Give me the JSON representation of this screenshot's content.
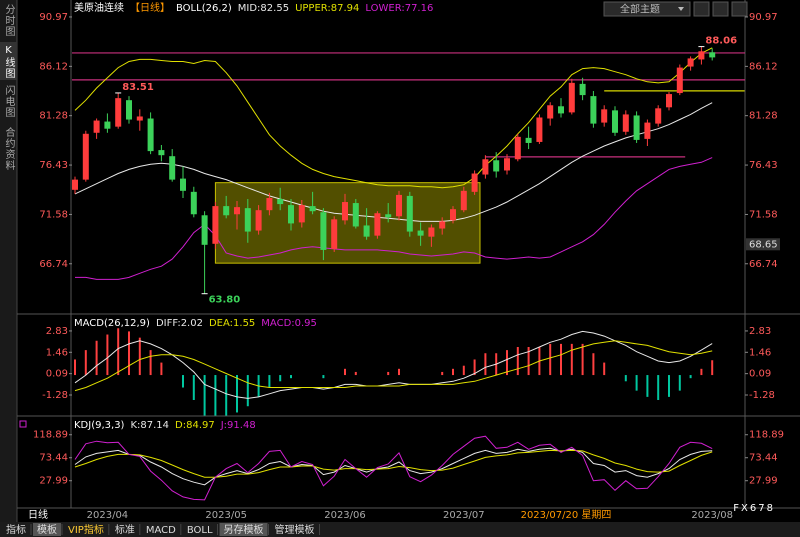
{
  "sidebar": [
    "分时图",
    "K线图",
    "闪电图",
    "合约资料"
  ],
  "toolbar": {
    "theme": "全部主题"
  },
  "chart_data": [
    {
      "type": "candlestick",
      "title": "美原油连续",
      "period": "【日线】",
      "indicator": "BOLL(26,2)",
      "up_color": "#ff3c3c",
      "down_color": "#3cd25a",
      "candles": [
        [
          74.0,
          75.3,
          73.6,
          75.0
        ],
        [
          75.0,
          79.8,
          74.8,
          79.5
        ],
        [
          79.6,
          81.0,
          79.0,
          80.8
        ],
        [
          80.7,
          81.5,
          79.6,
          80.0
        ],
        [
          80.2,
          83.51,
          80.0,
          83.0
        ],
        [
          82.8,
          83.2,
          80.5,
          80.9
        ],
        [
          80.8,
          81.9,
          79.8,
          81.2
        ],
        [
          81.0,
          81.6,
          77.5,
          77.8
        ],
        [
          77.9,
          78.4,
          76.8,
          77.4
        ],
        [
          77.3,
          78.0,
          74.8,
          75.0
        ],
        [
          75.1,
          76.3,
          73.2,
          73.9
        ],
        [
          73.8,
          74.3,
          71.3,
          71.6
        ],
        [
          71.5,
          71.9,
          63.8,
          68.6
        ],
        [
          68.7,
          72.8,
          68.2,
          72.4
        ],
        [
          72.4,
          73.4,
          71.2,
          71.5
        ],
        [
          71.6,
          72.9,
          70.1,
          72.3
        ],
        [
          72.2,
          73.1,
          68.8,
          69.9
        ],
        [
          70.0,
          72.5,
          69.6,
          72.0
        ],
        [
          72.0,
          73.7,
          71.5,
          73.2
        ],
        [
          73.1,
          74.2,
          72.0,
          72.6
        ],
        [
          72.5,
          73.1,
          70.0,
          70.7
        ],
        [
          70.8,
          73.0,
          70.3,
          72.5
        ],
        [
          72.4,
          73.8,
          71.6,
          71.9
        ],
        [
          71.8,
          72.2,
          67.1,
          68.1
        ],
        [
          68.2,
          71.4,
          67.9,
          71.1
        ],
        [
          71.0,
          73.6,
          70.6,
          72.8
        ],
        [
          72.7,
          73.1,
          70.2,
          70.4
        ],
        [
          70.5,
          72.2,
          69.1,
          69.4
        ],
        [
          69.5,
          71.9,
          69.2,
          71.7
        ],
        [
          71.6,
          72.7,
          70.8,
          71.3
        ],
        [
          71.4,
          73.9,
          71.0,
          73.5
        ],
        [
          73.4,
          73.8,
          69.4,
          69.9
        ],
        [
          70.0,
          70.8,
          68.5,
          69.5
        ],
        [
          69.4,
          70.6,
          68.4,
          70.3
        ],
        [
          70.2,
          71.3,
          69.6,
          70.9
        ],
        [
          71.0,
          72.4,
          70.7,
          72.1
        ],
        [
          72.0,
          74.3,
          71.8,
          73.9
        ],
        [
          73.8,
          75.9,
          73.5,
          75.6
        ],
        [
          75.5,
          77.4,
          75.1,
          77.0
        ],
        [
          76.9,
          77.7,
          75.2,
          75.8
        ],
        [
          75.9,
          77.5,
          75.5,
          77.1
        ],
        [
          77.0,
          79.5,
          76.8,
          79.2
        ],
        [
          79.1,
          80.2,
          78.0,
          78.6
        ],
        [
          78.7,
          81.4,
          78.5,
          81.1
        ],
        [
          81.0,
          82.6,
          80.3,
          82.3
        ],
        [
          82.2,
          83.0,
          81.1,
          81.5
        ],
        [
          81.6,
          84.9,
          81.4,
          84.5
        ],
        [
          84.4,
          85.0,
          82.8,
          83.3
        ],
        [
          83.2,
          83.7,
          80.1,
          80.5
        ],
        [
          80.6,
          82.3,
          80.2,
          81.9
        ],
        [
          81.8,
          82.2,
          79.3,
          79.6
        ],
        [
          79.7,
          81.8,
          79.4,
          81.4
        ],
        [
          81.3,
          81.7,
          78.6,
          78.9
        ],
        [
          79.0,
          80.9,
          78.3,
          80.6
        ],
        [
          80.5,
          82.3,
          80.2,
          82.0
        ],
        [
          82.1,
          83.6,
          81.8,
          83.4
        ],
        [
          83.5,
          86.3,
          83.3,
          86.0
        ],
        [
          86.1,
          87.1,
          85.7,
          86.9
        ],
        [
          86.8,
          88.06,
          86.3,
          87.6
        ],
        [
          87.5,
          87.9,
          86.7,
          87.0
        ]
      ],
      "series": [
        {
          "name": "MID:82.55",
          "color": "#e8e8e8",
          "values": [
            73.6,
            74.1,
            74.6,
            75.1,
            75.6,
            76.0,
            76.3,
            76.5,
            76.6,
            76.5,
            76.3,
            76.0,
            75.6,
            75.3,
            75.0,
            74.6,
            74.2,
            73.8,
            73.4,
            73.1,
            72.8,
            72.5,
            72.2,
            71.9,
            71.7,
            71.6,
            71.5,
            71.4,
            71.3,
            71.2,
            71.1,
            71.0,
            70.9,
            70.9,
            70.9,
            71.0,
            71.2,
            71.5,
            71.9,
            72.3,
            72.8,
            73.4,
            74.0,
            74.6,
            75.3,
            76.0,
            76.7,
            77.3,
            77.8,
            78.3,
            78.7,
            79.1,
            79.4,
            79.7,
            80.0,
            80.4,
            80.9,
            81.4,
            82.0,
            82.55
          ]
        },
        {
          "name": "UPPER:87.94",
          "color": "#e0e000",
          "values": [
            81.8,
            82.8,
            84.0,
            85.0,
            86.0,
            86.6,
            86.8,
            86.8,
            86.7,
            86.6,
            86.6,
            86.4,
            86.7,
            86.6,
            85.5,
            84.2,
            82.6,
            81.0,
            79.4,
            78.3,
            77.4,
            76.6,
            76.0,
            75.6,
            75.3,
            75.1,
            74.9,
            74.7,
            74.5,
            74.4,
            74.4,
            74.4,
            74.3,
            74.3,
            74.2,
            74.3,
            74.5,
            75.2,
            76.4,
            77.3,
            78.3,
            79.5,
            80.6,
            81.9,
            83.2,
            84.1,
            85.3,
            85.9,
            86.0,
            85.9,
            85.6,
            85.3,
            84.9,
            84.6,
            84.5,
            84.6,
            85.5,
            86.5,
            87.4,
            87.94
          ]
        },
        {
          "name": "LOWER:77.16",
          "color": "#d020d0",
          "values": [
            65.4,
            65.4,
            65.2,
            65.2,
            65.2,
            65.4,
            65.8,
            66.2,
            66.5,
            67.2,
            68.4,
            69.8,
            70.6,
            69.5,
            67.8,
            67.5,
            67.3,
            67.4,
            67.6,
            67.8,
            68.1,
            68.3,
            68.4,
            68.3,
            68.2,
            68.1,
            68.1,
            68.1,
            68.1,
            68.0,
            67.9,
            67.7,
            67.6,
            67.5,
            67.6,
            67.7,
            67.9,
            67.8,
            67.4,
            67.3,
            67.2,
            67.3,
            67.4,
            67.3,
            67.4,
            67.9,
            68.4,
            68.9,
            69.6,
            70.6,
            71.8,
            72.9,
            73.9,
            74.6,
            75.3,
            76.0,
            76.3,
            76.5,
            76.7,
            77.16
          ]
        }
      ],
      "ylim": [
        62.2,
        91.85
      ],
      "yticks": [
        90.97,
        86.12,
        81.28,
        76.43,
        71.58,
        66.74
      ],
      "levels": [
        {
          "value": 87.44,
          "color": "#c8307e"
        },
        {
          "value": 84.79,
          "color": "#c8307e"
        },
        {
          "value": 83.71,
          "color": "#d8d800",
          "x": [
            49,
            62
          ]
        },
        {
          "value": 77.23,
          "color": "#c8307e",
          "x": [
            38,
            56.5
          ]
        }
      ],
      "zone": {
        "x": [
          13,
          37.5
        ],
        "y": [
          66.8,
          74.7
        ],
        "color": "#6e6a00"
      },
      "annotations": [
        {
          "at": 4,
          "value": 83.51,
          "label": "83.51"
        },
        {
          "at": 12,
          "value": 63.8,
          "label": "63.80"
        },
        {
          "at": 58,
          "value": 88.06,
          "label": "88.06"
        }
      ],
      "last_marker": 68.65
    },
    {
      "type": "macd",
      "title": "MACD(26,12,9)",
      "up_color": "#ff4040",
      "down_color": "#00c8a0",
      "series": [
        {
          "name": "DIFF:2.02",
          "color": "#e8e8e8",
          "values": [
            -0.5,
            0.0,
            0.6,
            1.1,
            1.7,
            2.0,
            2.2,
            2.0,
            1.7,
            1.3,
            0.8,
            0.2,
            -0.6,
            -0.9,
            -1.2,
            -1.4,
            -1.5,
            -1.4,
            -1.2,
            -1.0,
            -0.9,
            -0.8,
            -0.8,
            -0.9,
            -0.8,
            -0.6,
            -0.6,
            -0.7,
            -0.7,
            -0.6,
            -0.5,
            -0.6,
            -0.6,
            -0.6,
            -0.5,
            -0.4,
            -0.2,
            0.1,
            0.5,
            0.7,
            1.0,
            1.3,
            1.5,
            1.8,
            2.1,
            2.3,
            2.6,
            2.8,
            2.7,
            2.5,
            2.2,
            1.9,
            1.5,
            1.2,
            0.9,
            0.8,
            0.9,
            1.2,
            1.6,
            2.02
          ]
        },
        {
          "name": "DEA:1.55",
          "color": "#e0e000",
          "values": [
            -1.0,
            -0.8,
            -0.5,
            -0.2,
            0.2,
            0.6,
            1.0,
            1.2,
            1.3,
            1.3,
            1.2,
            1.0,
            0.7,
            0.4,
            0.1,
            -0.2,
            -0.5,
            -0.7,
            -0.8,
            -0.8,
            -0.8,
            -0.8,
            -0.8,
            -0.8,
            -0.8,
            -0.8,
            -0.7,
            -0.7,
            -0.7,
            -0.7,
            -0.7,
            -0.6,
            -0.6,
            -0.6,
            -0.6,
            -0.6,
            -0.5,
            -0.4,
            -0.2,
            0.0,
            0.2,
            0.4,
            0.6,
            0.9,
            1.1,
            1.3,
            1.6,
            1.8,
            2.0,
            2.1,
            2.2,
            2.1,
            2.0,
            1.9,
            1.7,
            1.5,
            1.4,
            1.3,
            1.4,
            1.55
          ]
        },
        {
          "name": "MACD:0.95",
          "color": "#d020d0",
          "style": "bar",
          "values": [
            1.0,
            1.6,
            2.2,
            2.6,
            3.0,
            2.8,
            2.4,
            1.6,
            0.8,
            0.0,
            -0.8,
            -1.6,
            -2.6,
            -2.6,
            -2.6,
            -2.4,
            -2.0,
            -1.4,
            -0.8,
            -0.4,
            -0.2,
            0.0,
            0.0,
            -0.2,
            0.0,
            0.4,
            0.2,
            0.0,
            0.0,
            0.2,
            0.4,
            0.0,
            0.0,
            0.0,
            0.2,
            0.4,
            0.6,
            1.0,
            1.4,
            1.4,
            1.6,
            1.8,
            1.8,
            1.8,
            2.0,
            2.0,
            2.0,
            2.0,
            1.4,
            0.8,
            0.0,
            -0.4,
            -1.0,
            -1.4,
            -1.6,
            -1.4,
            -1.0,
            -0.2,
            0.4,
            0.95
          ]
        }
      ],
      "ylim": [
        -2.37,
        3.66
      ],
      "yticks": [
        2.83,
        1.46,
        0.09,
        -1.28
      ]
    },
    {
      "type": "kdj",
      "title": "KDJ(9,3,3)",
      "series": [
        {
          "name": "K:87.14",
          "color": "#e8e8e8",
          "values": [
            60,
            75,
            82,
            85,
            88,
            80,
            78,
            65,
            55,
            42,
            32,
            25,
            20,
            35,
            42,
            48,
            42,
            50,
            62,
            66,
            55,
            60,
            58,
            40,
            45,
            58,
            52,
            45,
            52,
            55,
            65,
            48,
            42,
            45,
            52,
            62,
            72,
            82,
            88,
            82,
            84,
            90,
            86,
            90,
            92,
            86,
            90,
            84,
            62,
            58,
            45,
            48,
            38,
            35,
            42,
            52,
            70,
            80,
            86,
            87.14
          ]
        },
        {
          "name": "D:84.97",
          "color": "#e0e000",
          "values": [
            55,
            62,
            70,
            76,
            80,
            80,
            79,
            74,
            68,
            59,
            50,
            42,
            35,
            35,
            37,
            41,
            41,
            44,
            50,
            55,
            55,
            57,
            57,
            51,
            49,
            52,
            52,
            50,
            51,
            52,
            56,
            54,
            50,
            48,
            49,
            53,
            60,
            67,
            74,
            77,
            79,
            83,
            84,
            86,
            88,
            87,
            88,
            87,
            79,
            72,
            63,
            58,
            51,
            46,
            45,
            47,
            58,
            68,
            78,
            84.97
          ]
        },
        {
          "name": "J:91.48",
          "color": "#d020d0",
          "values": [
            70,
            101,
            106,
            103,
            104,
            80,
            76,
            47,
            29,
            8,
            -4,
            -9,
            -10,
            35,
            52,
            62,
            44,
            62,
            86,
            88,
            55,
            66,
            60,
            18,
            37,
            70,
            52,
            35,
            54,
            61,
            83,
            36,
            26,
            39,
            58,
            80,
            96,
            112,
            116,
            92,
            94,
            104,
            90,
            98,
            100,
            84,
            94,
            78,
            28,
            30,
            9,
            28,
            12,
            13,
            36,
            62,
            94,
            104,
            102,
            91.48
          ]
        }
      ],
      "ylim": [
        -22,
        148
      ],
      "yticks": [
        118.89,
        73.44,
        27.99
      ],
      "categories": [
        null,
        null,
        null,
        "2023/04",
        null,
        null,
        null,
        null,
        null,
        null,
        null,
        null,
        null,
        null,
        "2023/05",
        null,
        null,
        null,
        null,
        null,
        null,
        null,
        null,
        null,
        null,
        "2023/06",
        null,
        null,
        null,
        null,
        null,
        null,
        null,
        null,
        null,
        null,
        "2023/07",
        null,
        null,
        null,
        null,
        null,
        null,
        null,
        null,
        null,
        null,
        null,
        null,
        null,
        null,
        null,
        null,
        null,
        null,
        null,
        null,
        null,
        null,
        "2023/08"
      ]
    }
  ],
  "footer": {
    "period": "日线",
    "cursor_date": "2023/07/20 星期四",
    "tabs": [
      "指标",
      "模板",
      "VIP指标",
      "标准",
      "MACD",
      "BOLL",
      "另存模板",
      "管理模板"
    ],
    "active_tabs": [
      1,
      6
    ]
  },
  "watermark": "FX678"
}
